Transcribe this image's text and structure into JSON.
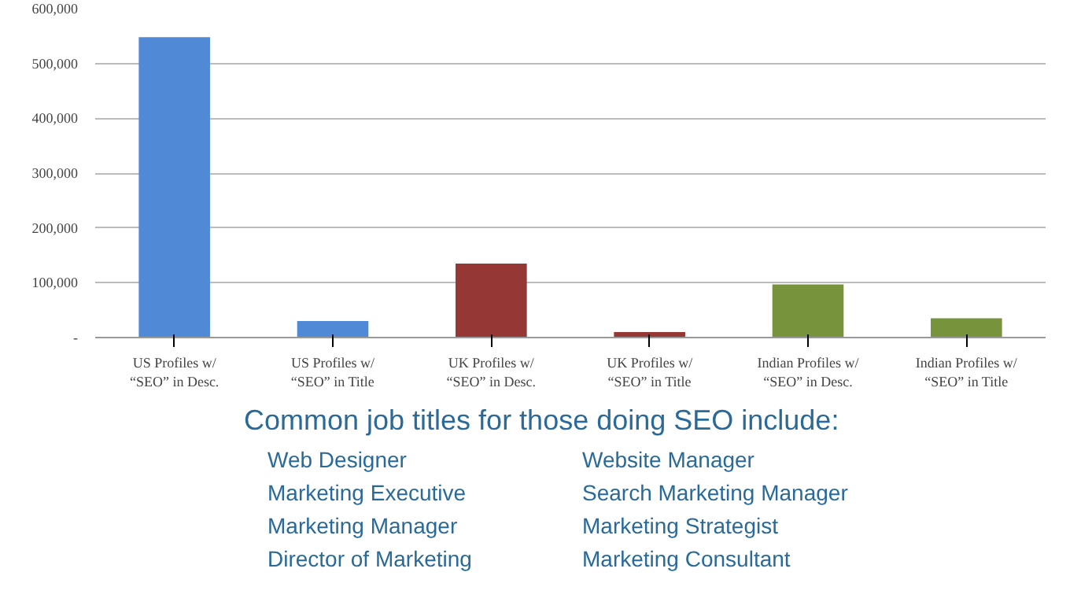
{
  "chart_data": {
    "type": "bar",
    "categories": [
      "US Profiles w/\n“SEO” in Desc.",
      "US Profiles w/\n“SEO” in Title",
      "UK Profiles w/\n“SEO” in Desc.",
      "UK Profiles w/\n“SEO” in Title",
      "Indian Profiles w/\n“SEO” in Desc.",
      "Indian Profiles w/\n“SEO” in Title"
    ],
    "values": [
      548000,
      30000,
      135000,
      10000,
      97000,
      35000
    ],
    "colors": [
      "#5089d6",
      "#5089d6",
      "#953735",
      "#953735",
      "#77933c",
      "#77933c"
    ],
    "ylim": [
      0,
      600000
    ],
    "yticks": [
      {
        "value": 0,
        "label": "-"
      },
      {
        "value": 100000,
        "label": "100,000"
      },
      {
        "value": 200000,
        "label": "200,000"
      },
      {
        "value": 300000,
        "label": "300,000"
      },
      {
        "value": 400000,
        "label": "400,000"
      },
      {
        "value": 500000,
        "label": "500,000"
      },
      {
        "value": 600000,
        "label": "600,000"
      }
    ],
    "grid": "y",
    "annotations": [
      "Common job titles for those doing SEO include:",
      "Web Designer",
      "Marketing Executive",
      "Marketing Manager",
      "Director of Marketing",
      "Website Manager",
      "Search Marketing Manager",
      "Marketing Strategist",
      "Marketing Consultant"
    ]
  }
}
